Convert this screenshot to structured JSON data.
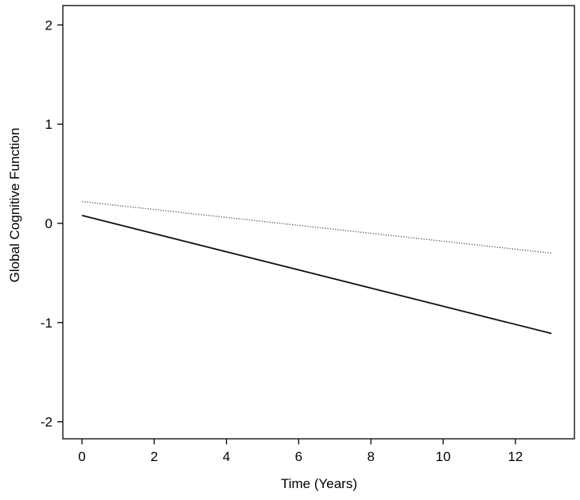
{
  "chart_data": {
    "type": "line",
    "title": "",
    "xlabel": "Time (Years)",
    "ylabel": "Global Cognitive Function",
    "xlim": [
      0,
      13
    ],
    "ylim": [
      -2,
      2
    ],
    "xticks": [
      "0",
      "2",
      "4",
      "6",
      "8",
      "10",
      "12"
    ],
    "yticks": [
      "-2",
      "-1",
      "0",
      "1",
      "2"
    ],
    "grid": false,
    "series": [
      {
        "x": [
          0,
          13
        ],
        "y": [
          0.22,
          -0.3
        ],
        "style": "dotted",
        "color": "#555555"
      },
      {
        "x": [
          0,
          13
        ],
        "y": [
          0.08,
          -1.11
        ],
        "style": "solid",
        "color": "#111111"
      }
    ]
  }
}
